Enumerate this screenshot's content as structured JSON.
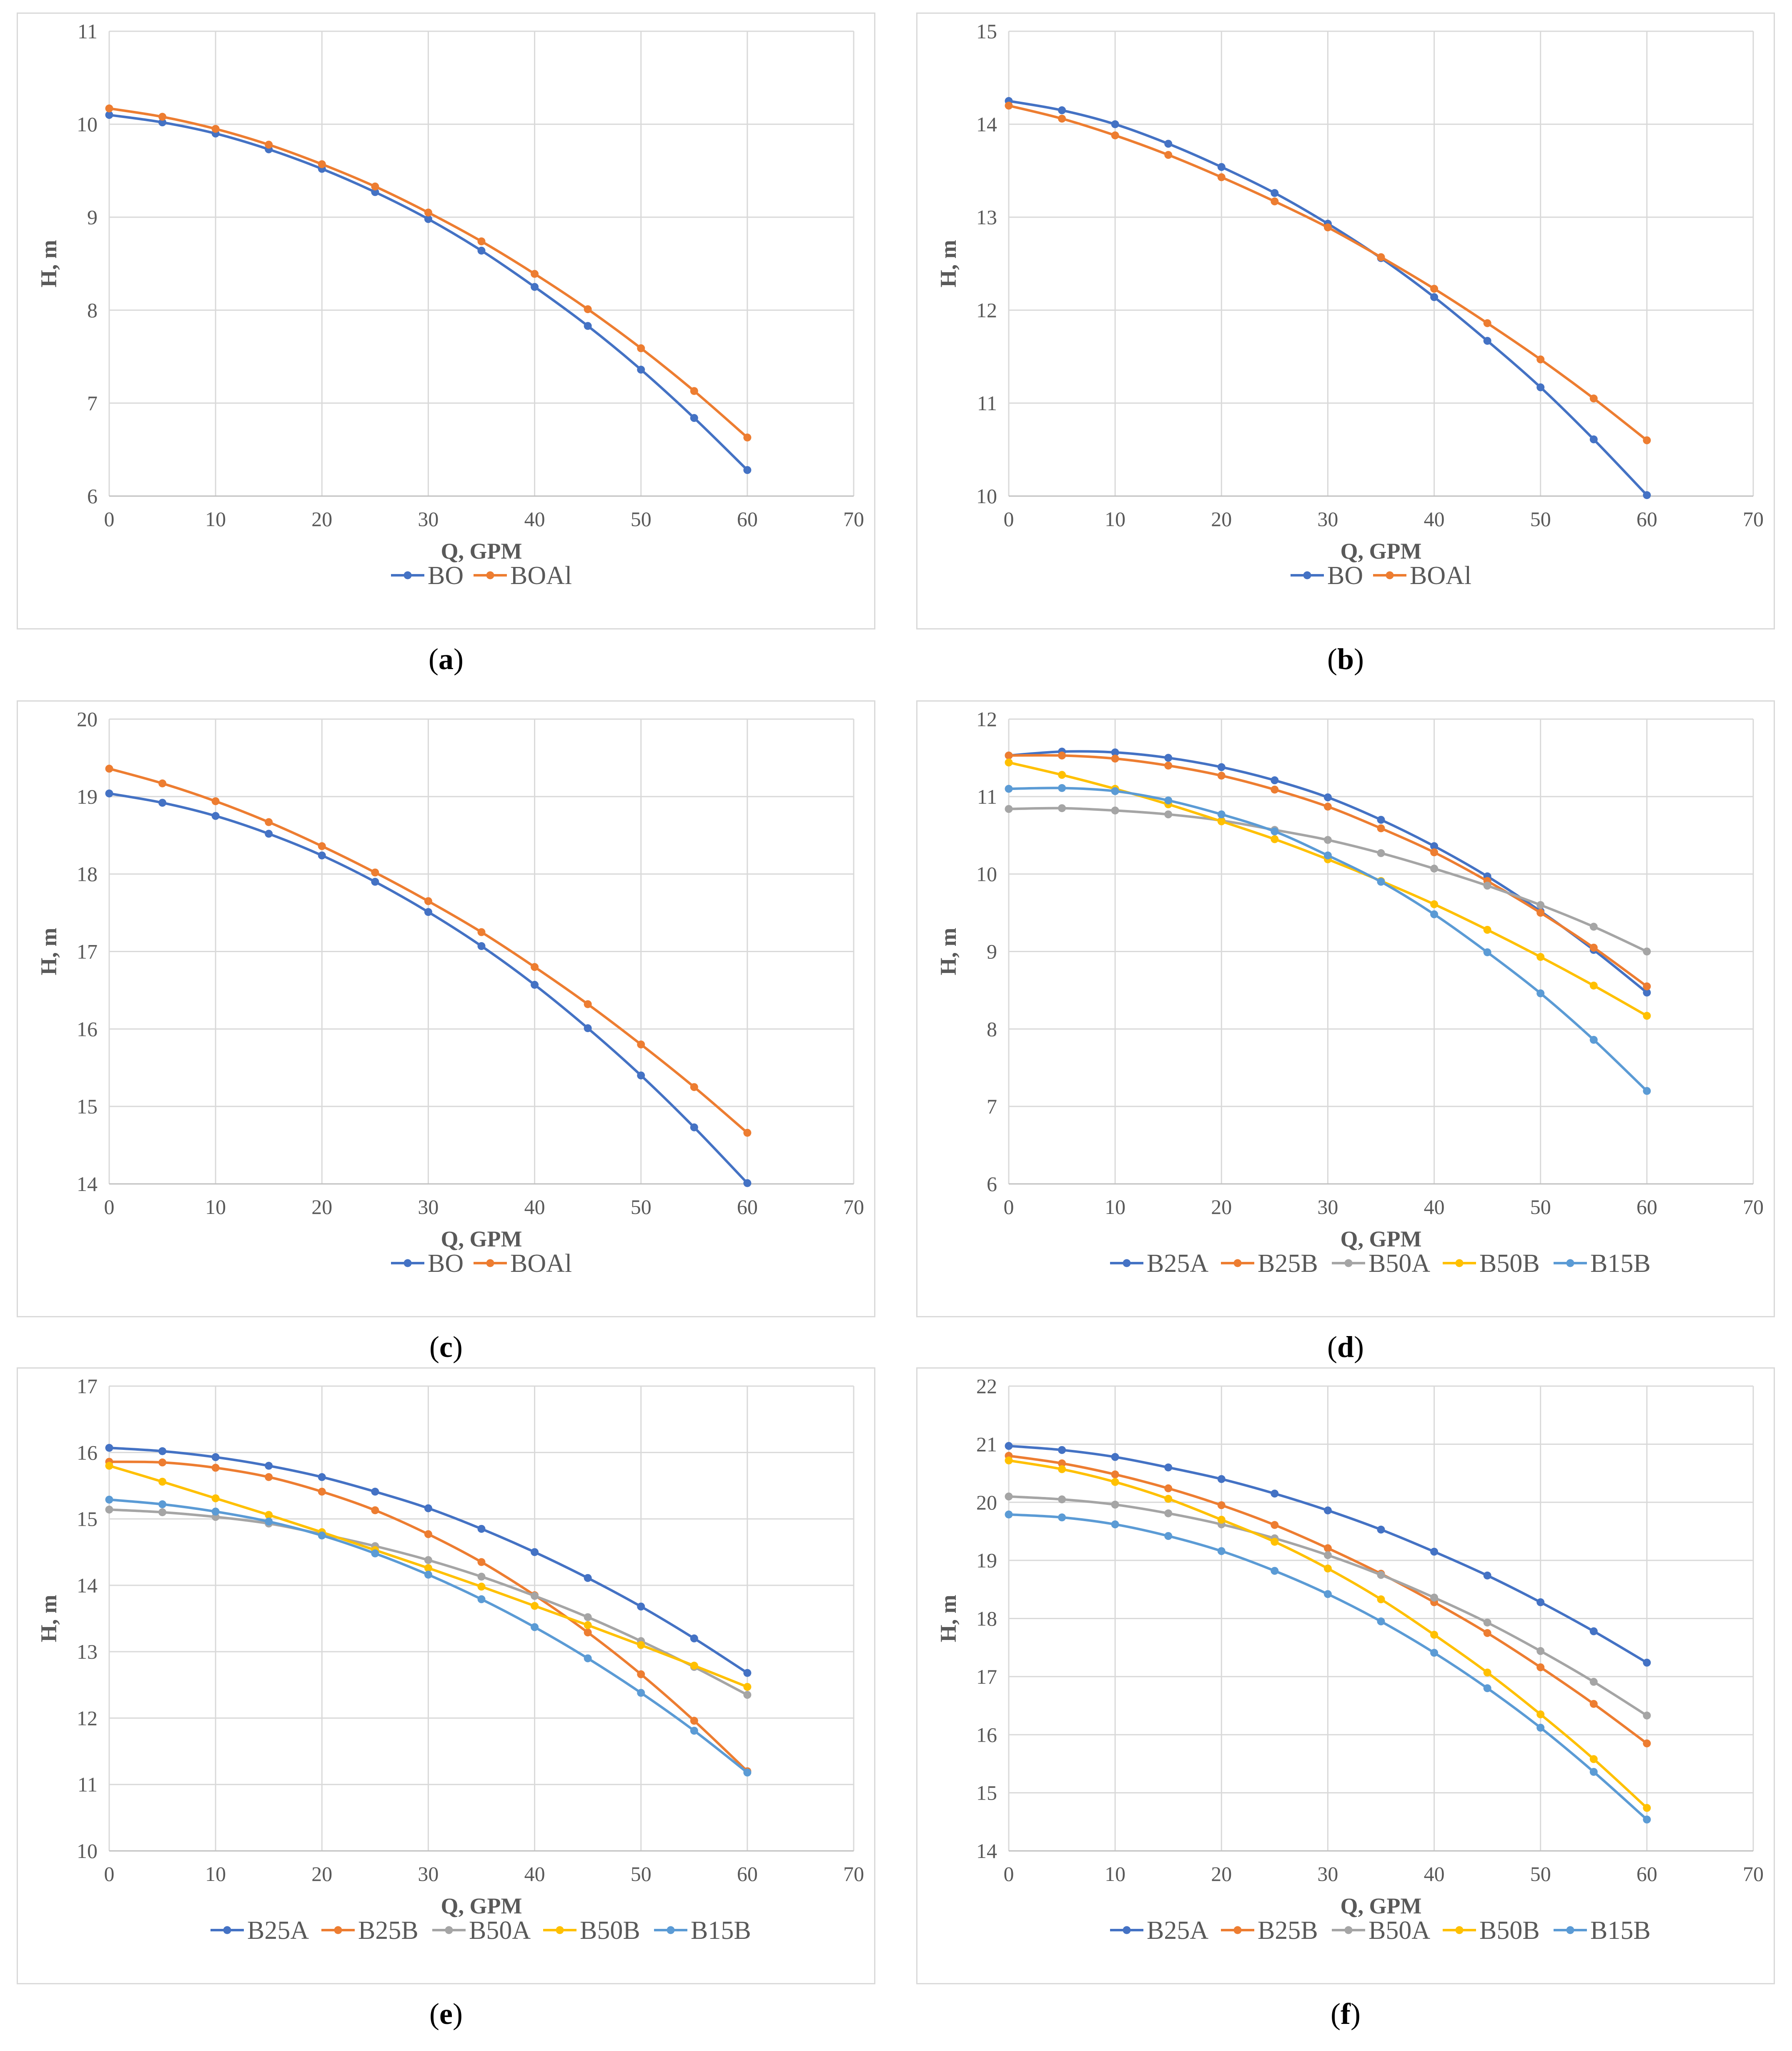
{
  "chart_data": [
    {
      "id": "a",
      "type": "line",
      "label": "a",
      "xlabel": "Q, GPM",
      "ylabel": "H, m",
      "xlim": [
        0,
        70
      ],
      "xticks": [
        0,
        10,
        20,
        30,
        40,
        50,
        60,
        70
      ],
      "ylim": [
        6,
        11
      ],
      "yticks": [
        6,
        7,
        8,
        9,
        10,
        11
      ],
      "x": [
        0,
        5,
        10,
        15,
        20,
        25,
        30,
        35,
        40,
        45,
        50,
        55,
        60
      ],
      "series": [
        {
          "name": "BO",
          "color": "#4472c4",
          "values": [
            10.1,
            10.02,
            9.9,
            9.73,
            9.52,
            9.27,
            8.98,
            8.64,
            8.25,
            7.83,
            7.36,
            6.84,
            6.28
          ]
        },
        {
          "name": "BOAl",
          "color": "#ed7d31",
          "values": [
            10.17,
            10.08,
            9.95,
            9.78,
            9.57,
            9.33,
            9.05,
            8.74,
            8.39,
            8.01,
            7.59,
            7.13,
            6.63
          ]
        }
      ]
    },
    {
      "id": "b",
      "type": "line",
      "label": "b",
      "xlabel": "Q, GPM",
      "ylabel": "H, m",
      "xlim": [
        0,
        70
      ],
      "xticks": [
        0,
        10,
        20,
        30,
        40,
        50,
        60,
        70
      ],
      "ylim": [
        10,
        15
      ],
      "yticks": [
        10,
        11,
        12,
        13,
        14,
        15
      ],
      "x": [
        0,
        5,
        10,
        15,
        20,
        25,
        30,
        35,
        40,
        45,
        50,
        55,
        60
      ],
      "series": [
        {
          "name": "BO",
          "color": "#4472c4",
          "values": [
            14.25,
            14.15,
            14.0,
            13.79,
            13.54,
            13.26,
            12.93,
            12.56,
            12.14,
            11.67,
            11.17,
            10.61,
            10.01
          ]
        },
        {
          "name": "BOAl",
          "color": "#ed7d31",
          "values": [
            14.2,
            14.06,
            13.88,
            13.67,
            13.43,
            13.17,
            12.89,
            12.57,
            12.23,
            11.86,
            11.47,
            11.05,
            10.6
          ]
        }
      ]
    },
    {
      "id": "c",
      "type": "line",
      "label": "c",
      "xlabel": "Q, GPM",
      "ylabel": "H, m",
      "xlim": [
        0,
        70
      ],
      "xticks": [
        0,
        10,
        20,
        30,
        40,
        50,
        60,
        70
      ],
      "ylim": [
        14,
        20
      ],
      "yticks": [
        14,
        15,
        16,
        17,
        18,
        19,
        20
      ],
      "x": [
        0,
        5,
        10,
        15,
        20,
        25,
        30,
        35,
        40,
        45,
        50,
        55,
        60
      ],
      "series": [
        {
          "name": "BO",
          "color": "#4472c4",
          "values": [
            19.04,
            18.92,
            18.75,
            18.52,
            18.24,
            17.9,
            17.51,
            17.07,
            16.57,
            16.01,
            15.4,
            14.73,
            14.01
          ]
        },
        {
          "name": "BOAl",
          "color": "#ed7d31",
          "values": [
            19.36,
            19.17,
            18.94,
            18.67,
            18.36,
            18.02,
            17.65,
            17.25,
            16.8,
            16.32,
            15.8,
            15.25,
            14.66
          ]
        }
      ]
    },
    {
      "id": "d",
      "type": "line",
      "label": "d",
      "xlabel": "Q, GPM",
      "ylabel": "H, m",
      "xlim": [
        0,
        70
      ],
      "xticks": [
        0,
        10,
        20,
        30,
        40,
        50,
        60,
        70
      ],
      "ylim": [
        6,
        12
      ],
      "yticks": [
        6,
        7,
        8,
        9,
        10,
        11,
        12
      ],
      "x": [
        0,
        5,
        10,
        15,
        20,
        25,
        30,
        35,
        40,
        45,
        50,
        55,
        60
      ],
      "series": [
        {
          "name": "B25A",
          "color": "#4472c4",
          "values": [
            11.53,
            11.58,
            11.57,
            11.5,
            11.38,
            11.21,
            10.99,
            10.7,
            10.36,
            9.97,
            9.52,
            9.02,
            8.47
          ]
        },
        {
          "name": "B25B",
          "color": "#ed7d31",
          "values": [
            11.53,
            11.53,
            11.49,
            11.4,
            11.27,
            11.09,
            10.87,
            10.59,
            10.28,
            9.91,
            9.5,
            9.05,
            8.55
          ]
        },
        {
          "name": "B50A",
          "color": "#a5a5a5",
          "values": [
            10.84,
            10.85,
            10.82,
            10.77,
            10.69,
            10.57,
            10.44,
            10.27,
            10.07,
            9.85,
            9.6,
            9.32,
            9.0
          ]
        },
        {
          "name": "B50B",
          "color": "#ffc000",
          "values": [
            11.44,
            11.28,
            11.1,
            10.9,
            10.68,
            10.45,
            10.19,
            9.91,
            9.61,
            9.28,
            8.93,
            8.56,
            8.17
          ]
        },
        {
          "name": "B15B",
          "color": "#5b9bd5",
          "values": [
            11.1,
            11.11,
            11.07,
            10.95,
            10.77,
            10.55,
            10.24,
            9.9,
            9.48,
            8.99,
            8.46,
            7.86,
            7.2
          ]
        }
      ]
    },
    {
      "id": "e",
      "type": "line",
      "label": "e",
      "xlabel": "Q, GPM",
      "ylabel": "H, m",
      "xlim": [
        0,
        70
      ],
      "xticks": [
        0,
        10,
        20,
        30,
        40,
        50,
        60,
        70
      ],
      "ylim": [
        10,
        17
      ],
      "yticks": [
        10,
        11,
        12,
        13,
        14,
        15,
        16,
        17
      ],
      "x": [
        0,
        5,
        10,
        15,
        20,
        25,
        30,
        35,
        40,
        45,
        50,
        55,
        60
      ],
      "series": [
        {
          "name": "B25A",
          "color": "#4472c4",
          "values": [
            16.07,
            16.02,
            15.93,
            15.8,
            15.63,
            15.41,
            15.16,
            14.85,
            14.5,
            14.11,
            13.68,
            13.2,
            12.68
          ]
        },
        {
          "name": "B25B",
          "color": "#ed7d31",
          "values": [
            15.86,
            15.85,
            15.77,
            15.63,
            15.41,
            15.13,
            14.77,
            14.35,
            13.85,
            13.29,
            12.66,
            11.96,
            11.2
          ]
        },
        {
          "name": "B50A",
          "color": "#a5a5a5",
          "values": [
            15.14,
            15.1,
            15.03,
            14.93,
            14.77,
            14.59,
            14.38,
            14.13,
            13.84,
            13.52,
            13.16,
            12.77,
            12.35
          ]
        },
        {
          "name": "B50B",
          "color": "#ffc000",
          "values": [
            15.8,
            15.56,
            15.31,
            15.06,
            14.8,
            14.53,
            14.26,
            13.98,
            13.69,
            13.4,
            13.1,
            12.79,
            12.47
          ]
        },
        {
          "name": "B15B",
          "color": "#5b9bd5",
          "values": [
            15.29,
            15.22,
            15.11,
            14.96,
            14.75,
            14.48,
            14.16,
            13.79,
            13.37,
            12.9,
            12.38,
            11.81,
            11.18
          ]
        }
      ]
    },
    {
      "id": "f",
      "type": "line",
      "label": "f",
      "xlabel": "Q, GPM",
      "ylabel": "H, m",
      "xlim": [
        0,
        70
      ],
      "xticks": [
        0,
        10,
        20,
        30,
        40,
        50,
        60,
        70
      ],
      "ylim": [
        14,
        22
      ],
      "yticks": [
        14,
        15,
        16,
        17,
        18,
        19,
        20,
        21,
        22
      ],
      "x": [
        0,
        5,
        10,
        15,
        20,
        25,
        30,
        35,
        40,
        45,
        50,
        55,
        60
      ],
      "series": [
        {
          "name": "B25A",
          "color": "#4472c4",
          "values": [
            20.97,
            20.9,
            20.78,
            20.6,
            20.4,
            20.15,
            19.86,
            19.53,
            19.15,
            18.74,
            18.28,
            17.78,
            17.24
          ]
        },
        {
          "name": "B25B",
          "color": "#ed7d31",
          "values": [
            20.8,
            20.67,
            20.48,
            20.24,
            19.95,
            19.61,
            19.21,
            18.77,
            18.28,
            17.75,
            17.16,
            16.53,
            15.85
          ]
        },
        {
          "name": "B50A",
          "color": "#a5a5a5",
          "values": [
            20.1,
            20.05,
            19.96,
            19.81,
            19.62,
            19.38,
            19.09,
            18.75,
            18.36,
            17.93,
            17.44,
            16.91,
            16.33
          ]
        },
        {
          "name": "B50B",
          "color": "#ffc000",
          "values": [
            20.72,
            20.57,
            20.35,
            20.06,
            19.7,
            19.32,
            18.86,
            18.33,
            17.72,
            17.07,
            16.35,
            15.58,
            14.74
          ]
        },
        {
          "name": "B15B",
          "color": "#5b9bd5",
          "values": [
            19.79,
            19.74,
            19.62,
            19.42,
            19.16,
            18.82,
            18.42,
            17.95,
            17.41,
            16.8,
            16.12,
            15.36,
            14.54
          ]
        }
      ]
    }
  ]
}
